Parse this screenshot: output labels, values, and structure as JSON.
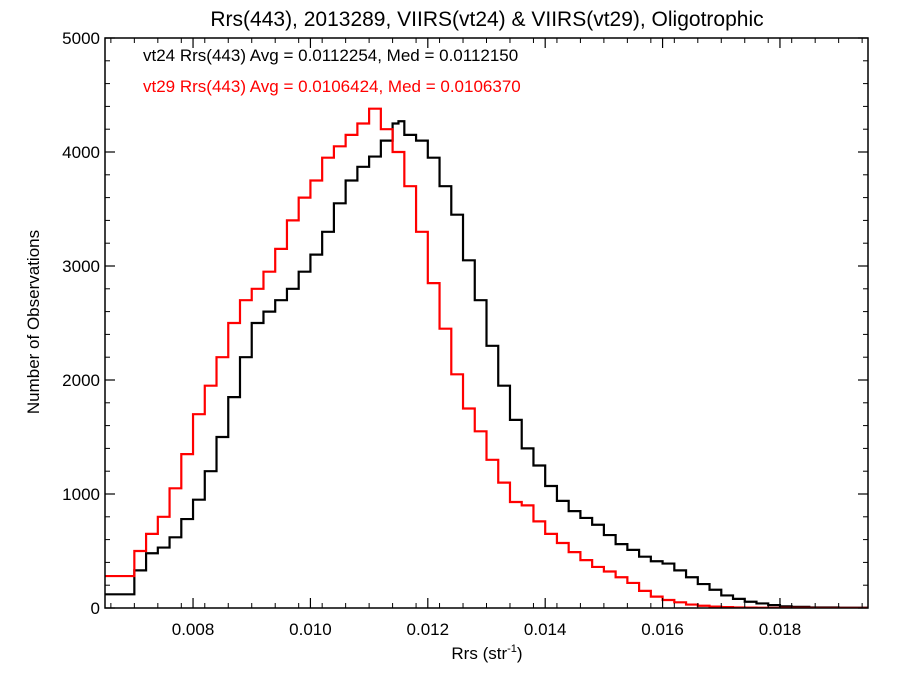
{
  "chart_data": {
    "type": "line",
    "step": true,
    "title": "Rrs(443), 2013289, VIIRS(vt24) & VIIRS(vt29), Oligotrophic",
    "xlabel": "Rrs (str",
    "xlabel_sup": "-1",
    "xlabel_close": ")",
    "ylabel": "Number of Observations",
    "xlim": [
      0.0065,
      0.0195
    ],
    "ylim": [
      0,
      5000
    ],
    "xticks": [
      0.008,
      0.01,
      0.012,
      0.014,
      0.016,
      0.018
    ],
    "xtick_labels": [
      "0.008",
      "0.010",
      "0.012",
      "0.014",
      "0.016",
      "0.018"
    ],
    "yticks": [
      0,
      1000,
      2000,
      3000,
      4000,
      5000
    ],
    "ytick_labels": [
      "0",
      "1000",
      "2000",
      "3000",
      "4000",
      "5000"
    ],
    "grid": false,
    "legend_position": "top-left",
    "series": [
      {
        "name": "vt24 Rrs(443) Avg = 0.0112254, Med = 0.0112150",
        "color": "#000000",
        "x": [
          0.0065,
          0.007,
          0.0072,
          0.0074,
          0.0076,
          0.0078,
          0.008,
          0.0082,
          0.0084,
          0.0086,
          0.0088,
          0.009,
          0.0092,
          0.0094,
          0.0096,
          0.0098,
          0.01,
          0.0102,
          0.0104,
          0.0106,
          0.0108,
          0.011,
          0.0112,
          0.0114,
          0.0115,
          0.0116,
          0.0118,
          0.012,
          0.0122,
          0.0124,
          0.0126,
          0.0128,
          0.013,
          0.0132,
          0.0134,
          0.0136,
          0.0138,
          0.014,
          0.0142,
          0.0144,
          0.0146,
          0.0148,
          0.015,
          0.0152,
          0.0154,
          0.0156,
          0.0158,
          0.016,
          0.0162,
          0.0164,
          0.0166,
          0.0168,
          0.017,
          0.0172,
          0.0174,
          0.0176,
          0.0178,
          0.018,
          0.0182,
          0.0185,
          0.019,
          0.0195
        ],
        "y": [
          120,
          330,
          480,
          530,
          620,
          780,
          950,
          1200,
          1500,
          1850,
          2200,
          2500,
          2600,
          2700,
          2800,
          2950,
          3100,
          3300,
          3550,
          3750,
          3870,
          3960,
          4100,
          4250,
          4270,
          4150,
          4100,
          3950,
          3700,
          3450,
          3050,
          2700,
          2300,
          1950,
          1650,
          1400,
          1250,
          1070,
          940,
          850,
          790,
          730,
          640,
          560,
          510,
          450,
          410,
          390,
          330,
          270,
          210,
          160,
          110,
          80,
          55,
          40,
          25,
          15,
          10,
          5,
          2,
          0
        ]
      },
      {
        "name": "vt29 Rrs(443) Avg = 0.0106424, Med = 0.0106370",
        "color": "#ff0000",
        "x": [
          0.0065,
          0.007,
          0.0072,
          0.0074,
          0.0076,
          0.0078,
          0.008,
          0.0082,
          0.0084,
          0.0086,
          0.0088,
          0.009,
          0.0092,
          0.0094,
          0.0096,
          0.0098,
          0.01,
          0.0102,
          0.0104,
          0.0106,
          0.0108,
          0.011,
          0.0112,
          0.0114,
          0.0116,
          0.0118,
          0.012,
          0.0122,
          0.0124,
          0.0126,
          0.0128,
          0.013,
          0.0132,
          0.0134,
          0.0136,
          0.0138,
          0.014,
          0.0142,
          0.0144,
          0.0146,
          0.0148,
          0.015,
          0.0152,
          0.0154,
          0.0156,
          0.0158,
          0.016,
          0.0162,
          0.0164,
          0.0166,
          0.0168,
          0.017,
          0.0172,
          0.0174,
          0.0176,
          0.0178,
          0.018,
          0.0185,
          0.019,
          0.0195
        ],
        "y": [
          280,
          500,
          650,
          800,
          1050,
          1350,
          1700,
          1950,
          2200,
          2500,
          2700,
          2800,
          2950,
          3150,
          3400,
          3600,
          3750,
          3950,
          4050,
          4150,
          4250,
          4380,
          4200,
          4000,
          3700,
          3300,
          2850,
          2450,
          2050,
          1750,
          1550,
          1300,
          1100,
          930,
          900,
          760,
          650,
          570,
          490,
          420,
          360,
          320,
          270,
          220,
          150,
          100,
          70,
          50,
          30,
          20,
          12,
          8,
          5,
          3,
          2,
          1,
          1,
          0,
          0,
          0
        ]
      }
    ]
  }
}
